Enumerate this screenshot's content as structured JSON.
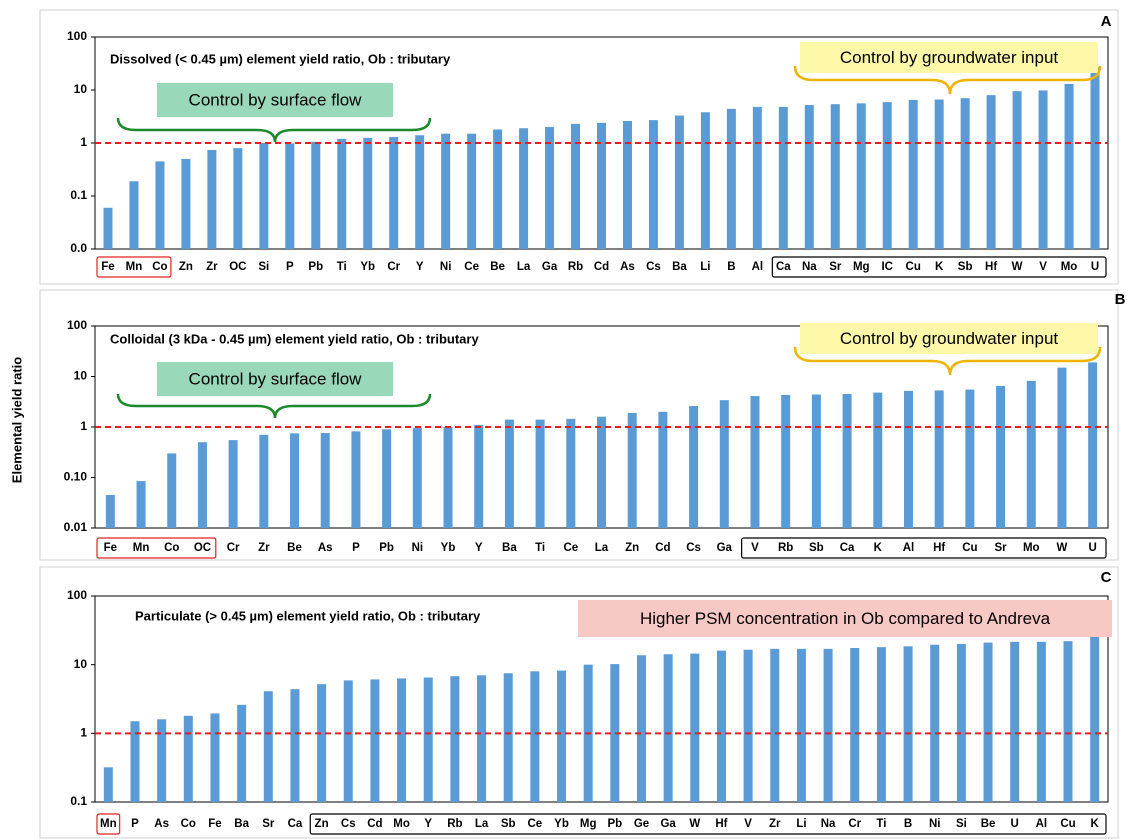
{
  "y_label": "Elemental yield ratio",
  "chart_data": [
    {
      "type": "bar",
      "panel": "A",
      "title": "Dissolved (< 0.45 µm) element yield ratio, Ob : tributary",
      "annotations": [
        "Control by surface flow",
        "Control by groundwater input"
      ],
      "categories": [
        "Fe",
        "Mn",
        "Co",
        "Zn",
        "Zr",
        "OC",
        "Si",
        "P",
        "Pb",
        "Ti",
        "Yb",
        "Cr",
        "Y",
        "Ni",
        "Ce",
        "Be",
        "La",
        "Ga",
        "Rb",
        "Cd",
        "As",
        "Cs",
        "Ba",
        "Li",
        "B",
        "Al",
        "Ca",
        "Na",
        "Sr",
        "Mg",
        "IC",
        "Cu",
        "K",
        "Sb",
        "Hf",
        "W",
        "V",
        "Mo",
        "U"
      ],
      "values": [
        0.06,
        0.19,
        0.45,
        0.5,
        0.74,
        0.8,
        1.0,
        0.98,
        1.05,
        1.2,
        1.25,
        1.3,
        1.4,
        1.5,
        1.5,
        1.8,
        1.9,
        2.0,
        2.3,
        2.4,
        2.6,
        2.7,
        3.3,
        3.8,
        4.4,
        4.8,
        4.8,
        5.2,
        5.4,
        5.6,
        5.9,
        6.5,
        6.6,
        7.0,
        8.0,
        9.5,
        9.8,
        13,
        27
      ],
      "color": "#5b9bd5",
      "log_scale": true,
      "hline": 1,
      "hline_color": "#e02020",
      "ylim": [
        0.01,
        100
      ],
      "yticks": [
        {
          "value": 0.01,
          "label": "0.0"
        },
        0.1,
        1,
        10,
        100
      ]
    },
    {
      "type": "bar",
      "panel": "B",
      "title": "Colloidal (3 kDa - 0.45 µm) element yield ratio, Ob : tributary",
      "annotations": [
        "Control by surface flow",
        "Control by groundwater input"
      ],
      "categories": [
        "Fe",
        "Mn",
        "Co",
        "OC",
        "Cr",
        "Zr",
        "Be",
        "As",
        "P",
        "Pb",
        "Ni",
        "Yb",
        "Y",
        "Ba",
        "Ti",
        "Ce",
        "La",
        "Zn",
        "Cd",
        "Cs",
        "Ga",
        "V",
        "Rb",
        "Sb",
        "Ca",
        "K",
        "Al",
        "Hf",
        "Cu",
        "Sr",
        "Mo",
        "W",
        "U"
      ],
      "values": [
        0.045,
        0.085,
        0.3,
        0.5,
        0.55,
        0.7,
        0.75,
        0.76,
        0.82,
        0.9,
        0.95,
        1.0,
        1.1,
        1.4,
        1.4,
        1.45,
        1.6,
        1.9,
        2.0,
        2.6,
        3.4,
        4.1,
        4.3,
        4.4,
        4.5,
        4.8,
        5.2,
        5.3,
        5.5,
        6.5,
        8.2,
        15,
        19
      ],
      "color": "#5b9bd5",
      "log_scale": true,
      "hline": 1,
      "hline_color": "#e02020",
      "ylim": [
        0.01,
        100
      ],
      "yticks": [
        0.01,
        {
          "value": 0.1,
          "label": "0.10"
        },
        1,
        10,
        100
      ]
    },
    {
      "type": "bar",
      "panel": "C",
      "title": "Particulate (> 0.45 µm) element yield ratio, Ob : tributary",
      "annotations": [
        "Higher PSM concentration in Ob compared to Andreva"
      ],
      "categories": [
        "Mn",
        "P",
        "As",
        "Co",
        "Fe",
        "Ba",
        "Sr",
        "Ca",
        "Zn",
        "Cs",
        "Cd",
        "Mo",
        "Y",
        "Rb",
        "La",
        "Sb",
        "Ce",
        "Yb",
        "Mg",
        "Pb",
        "Ge",
        "Ga",
        "W",
        "Hf",
        "V",
        "Zr",
        "Li",
        "Na",
        "Cr",
        "Ti",
        "B",
        "Ni",
        "Si",
        "Be",
        "U",
        "Al",
        "Cu",
        "K"
      ],
      "values": [
        0.32,
        1.5,
        1.6,
        1.8,
        1.95,
        2.6,
        4.1,
        4.4,
        5.2,
        5.9,
        6.1,
        6.3,
        6.5,
        6.8,
        7.0,
        7.5,
        8.0,
        8.2,
        10,
        10.2,
        13.7,
        14.2,
        14.5,
        16,
        16.5,
        17,
        17,
        17,
        17.5,
        18,
        18.5,
        19.5,
        20,
        21,
        21.5,
        21.5,
        22,
        28
      ],
      "color": "#5b9bd5",
      "log_scale": true,
      "hline": 1,
      "hline_color": "#e02020",
      "ylim": [
        0.1,
        100
      ],
      "yticks": [
        0.1,
        1,
        10,
        100
      ]
    }
  ]
}
